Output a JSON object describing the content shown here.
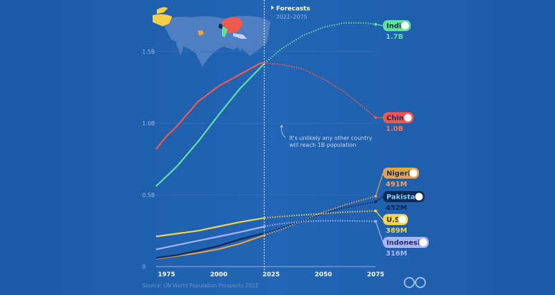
{
  "chart_data": {
    "type": "line",
    "title": "",
    "xlabel": "",
    "ylabel": "",
    "xlim": [
      1970,
      2075
    ],
    "ylim": [
      0,
      1.75
    ],
    "x_ticks": [
      "1975",
      "2000",
      "2025",
      "2050",
      "2075"
    ],
    "y_ticks": [
      {
        "v": 0,
        "label": "0"
      },
      {
        "v": 0.5,
        "label": "0.5B"
      },
      {
        "v": 1.0,
        "label": "1.0B"
      },
      {
        "v": 1.5,
        "label": "1.5B"
      }
    ],
    "grid": true,
    "forecast": {
      "start_year": 2022,
      "label": "Forecasts",
      "range": "2022–2075"
    },
    "annotation": "It's unlikely any other country will reach 1B population",
    "source": "Source: UN World Population Prospects 2022",
    "unit": "billions",
    "series": [
      {
        "name": "India",
        "end_label": "1.7B",
        "color": "#5fe39a",
        "label_color": "#5fe39a",
        "x": [
          1970,
          1980,
          1990,
          2000,
          2010,
          2022,
          2030,
          2040,
          2050,
          2060,
          2070,
          2075
        ],
        "y": [
          0.56,
          0.7,
          0.87,
          1.06,
          1.24,
          1.42,
          1.52,
          1.61,
          1.67,
          1.7,
          1.7,
          1.69
        ]
      },
      {
        "name": "China",
        "end_label": "1.0B",
        "color": "#ef5a4c",
        "label_color": "#ff6f5e",
        "x": [
          1970,
          1975,
          1980,
          1990,
          2000,
          2010,
          2020,
          2022,
          2030,
          2040,
          2050,
          2060,
          2070,
          2075
        ],
        "y": [
          0.82,
          0.91,
          0.98,
          1.15,
          1.26,
          1.34,
          1.42,
          1.42,
          1.41,
          1.38,
          1.31,
          1.22,
          1.1,
          1.04
        ]
      },
      {
        "name": "Nigeria",
        "end_label": "491M",
        "color": "#e8a24a",
        "label_color": "#f0a850",
        "x": [
          1970,
          1980,
          1990,
          2000,
          2010,
          2022,
          2030,
          2040,
          2050,
          2060,
          2075
        ],
        "y": [
          0.055,
          0.075,
          0.095,
          0.122,
          0.16,
          0.22,
          0.26,
          0.32,
          0.38,
          0.43,
          0.491
        ]
      },
      {
        "name": "Pakistan",
        "end_label": "452M",
        "color": "#0c2a55",
        "label_color": "#0c2a55",
        "x": [
          1970,
          1980,
          1990,
          2000,
          2010,
          2022,
          2030,
          2040,
          2050,
          2060,
          2075
        ],
        "y": [
          0.06,
          0.08,
          0.11,
          0.145,
          0.19,
          0.235,
          0.27,
          0.32,
          0.37,
          0.41,
          0.452
        ]
      },
      {
        "name": "U.S.",
        "end_label": "389M",
        "color": "#f5d547",
        "label_color": "#f5d547",
        "x": [
          1970,
          1980,
          1990,
          2000,
          2010,
          2022,
          2030,
          2040,
          2050,
          2060,
          2075
        ],
        "y": [
          0.21,
          0.23,
          0.25,
          0.28,
          0.31,
          0.34,
          0.35,
          0.36,
          0.37,
          0.38,
          0.389
        ]
      },
      {
        "name": "Indonesia",
        "end_label": "316M",
        "color": "#a9b4f5",
        "label_color": "#a9b4f5",
        "x": [
          1970,
          1980,
          1990,
          2000,
          2010,
          2022,
          2030,
          2040,
          2050,
          2060,
          2075
        ],
        "y": [
          0.12,
          0.15,
          0.18,
          0.21,
          0.24,
          0.28,
          0.3,
          0.315,
          0.32,
          0.32,
          0.316
        ]
      }
    ]
  }
}
